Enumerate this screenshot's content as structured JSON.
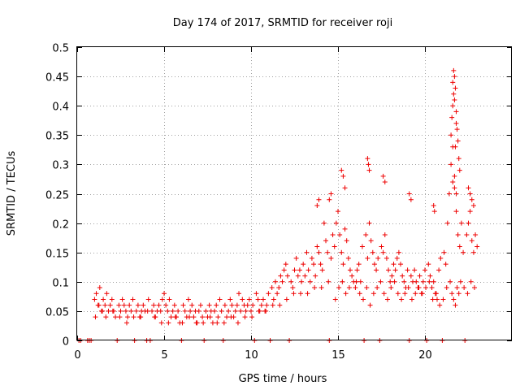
{
  "chart_data": {
    "type": "scatter",
    "title": "Day 174 of 2017, SRMTID for receiver roji",
    "xlabel": "GPS time / hours",
    "ylabel": "SRMTID / TECUs",
    "xlim": [
      0,
      25
    ],
    "ylim": [
      0,
      0.5
    ],
    "xticks": [
      0,
      5,
      10,
      15,
      20
    ],
    "xtick_labels": [
      "0",
      "5",
      "10",
      "15",
      "20"
    ],
    "yticks": [
      0,
      0.05,
      0.1,
      0.15,
      0.2,
      0.25,
      0.3,
      0.35,
      0.4,
      0.45,
      0.5
    ],
    "ytick_labels": [
      "0",
      "0.05",
      "0.1",
      "0.15",
      "0.2",
      "0.25",
      "0.3",
      "0.35",
      "0.4",
      "0.45",
      "0.5"
    ],
    "grid": true,
    "marker": "+",
    "series_color": "#ee0000",
    "series": [
      {
        "name": "SRMTID",
        "x": [
          0.1,
          0.2,
          0.6,
          0.7,
          0.8,
          2.3,
          3.3,
          4.0,
          4.2,
          6.0,
          7.3,
          8.4,
          10.2,
          11.1,
          12.2,
          14.5,
          16.5,
          17.4,
          19.1,
          20.1,
          21.0,
          22.3,
          1.0,
          1.1,
          1.2,
          1.3,
          1.4,
          1.5,
          1.6,
          1.7,
          1.8,
          1.9,
          2.0,
          2.1,
          2.2,
          2.4,
          2.5,
          2.6,
          2.7,
          2.8,
          2.9,
          3.0,
          3.1,
          3.2,
          3.4,
          3.5,
          3.6,
          3.7,
          3.8,
          3.9,
          4.1,
          4.3,
          4.4,
          4.5,
          4.6,
          4.7,
          4.8,
          4.9,
          5.0,
          5.1,
          5.2,
          5.3,
          5.4,
          5.5,
          5.6,
          5.7,
          5.8,
          5.9,
          6.1,
          6.2,
          6.3,
          6.4,
          6.5,
          6.6,
          6.7,
          6.8,
          6.9,
          7.0,
          7.1,
          7.2,
          7.4,
          7.5,
          7.6,
          7.7,
          7.8,
          7.9,
          8.0,
          8.1,
          8.2,
          8.3,
          8.5,
          8.6,
          8.7,
          8.8,
          8.9,
          9.0,
          9.1,
          9.2,
          9.3,
          9.4,
          9.5,
          9.6,
          9.7,
          9.8,
          9.9,
          10.0,
          10.1,
          10.3,
          10.4,
          10.5,
          10.6,
          10.7,
          10.8,
          10.9,
          11.0,
          11.2,
          11.3,
          11.4,
          11.5,
          11.6,
          11.7,
          11.8,
          11.9,
          12.0,
          12.1,
          12.3,
          12.4,
          12.5,
          12.6,
          12.7,
          12.8,
          12.9,
          13.0,
          13.1,
          13.2,
          13.3,
          13.4,
          13.5,
          13.6,
          13.7,
          13.8,
          13.9,
          14.0,
          14.1,
          14.2,
          14.3,
          14.4,
          14.6,
          14.7,
          14.8,
          14.9,
          15.0,
          15.1,
          15.2,
          15.3,
          15.4,
          15.5,
          15.6,
          15.7,
          15.8,
          15.9,
          16.0,
          16.1,
          16.2,
          16.3,
          16.4,
          16.6,
          16.7,
          16.8,
          16.9,
          17.0,
          17.1,
          17.2,
          17.3,
          17.5,
          17.6,
          17.7,
          17.8,
          17.9,
          18.0,
          18.1,
          18.2,
          18.3,
          18.4,
          18.5,
          18.6,
          18.7,
          18.8,
          18.9,
          19.0,
          19.2,
          19.3,
          19.4,
          19.5,
          19.6,
          19.7,
          19.8,
          19.9,
          20.0,
          20.2,
          20.3,
          20.4,
          20.5,
          20.6,
          20.7,
          20.8,
          20.9,
          21.1,
          21.2,
          21.3,
          21.4,
          21.5,
          21.6,
          21.7,
          21.8,
          21.9,
          22.0,
          22.1,
          22.2,
          22.4,
          22.5,
          22.6,
          22.7,
          22.8,
          22.9,
          23.0,
          1.05,
          1.25,
          1.45,
          1.65,
          2.05,
          2.45,
          2.85,
          3.25,
          3.65,
          4.05,
          4.45,
          4.85,
          5.25,
          5.65,
          6.05,
          6.45,
          6.85,
          7.25,
          7.65,
          8.05,
          8.45,
          8.85,
          9.25,
          9.65,
          10.05,
          10.45,
          10.85,
          11.25,
          11.65,
          12.05,
          12.45,
          12.85,
          13.25,
          13.65,
          14.05,
          14.45,
          14.85,
          15.05,
          15.25,
          15.45,
          15.65,
          16.05,
          16.25,
          16.45,
          16.65,
          16.85,
          17.05,
          17.25,
          17.45,
          17.65,
          17.85,
          18.05,
          18.25,
          18.45,
          18.65,
          18.85,
          19.05,
          19.25,
          19.45,
          19.65,
          19.85,
          20.05,
          20.25,
          20.45,
          20.65,
          20.85,
          21.05,
          21.25,
          21.45,
          21.55,
          21.65,
          21.75,
          21.85,
          21.95,
          22.05,
          22.25,
          22.45,
          22.65,
          22.85,
          21.5,
          21.55,
          21.6,
          21.65,
          21.7,
          21.75,
          21.8,
          21.85,
          21.9,
          21.95,
          22.0,
          21.6,
          21.7,
          21.8,
          21.65,
          21.75,
          15.2,
          15.3,
          15.4,
          16.7,
          16.75,
          16.8,
          17.6,
          17.7,
          14.6,
          14.5,
          13.8,
          13.9,
          19.1,
          19.2,
          20.5,
          20.55,
          22.5,
          22.6,
          22.7,
          22.8,
          21.6,
          21.7,
          21.8
        ],
        "y": [
          0,
          0,
          0,
          0,
          0,
          0,
          0,
          0,
          0,
          0,
          0,
          0,
          0,
          0,
          0,
          0,
          0,
          0,
          0,
          0,
          0,
          0,
          0.07,
          0.08,
          0.06,
          0.09,
          0.05,
          0.07,
          0.06,
          0.08,
          0.05,
          0.06,
          0.07,
          0.05,
          0.04,
          0.06,
          0.05,
          0.07,
          0.06,
          0.05,
          0.04,
          0.06,
          0.05,
          0.07,
          0.05,
          0.06,
          0.04,
          0.05,
          0.06,
          0.05,
          0.07,
          0.05,
          0.06,
          0.04,
          0.05,
          0.06,
          0.05,
          0.07,
          0.08,
          0.06,
          0.05,
          0.07,
          0.04,
          0.05,
          0.06,
          0.04,
          0.05,
          0.03,
          0.06,
          0.05,
          0.04,
          0.07,
          0.05,
          0.06,
          0.04,
          0.05,
          0.03,
          0.05,
          0.06,
          0.04,
          0.05,
          0.04,
          0.06,
          0.05,
          0.03,
          0.05,
          0.06,
          0.04,
          0.07,
          0.05,
          0.06,
          0.04,
          0.05,
          0.07,
          0.06,
          0.04,
          0.05,
          0.06,
          0.08,
          0.05,
          0.07,
          0.06,
          0.05,
          0.06,
          0.07,
          0.05,
          0.06,
          0.08,
          0.07,
          0.05,
          0.06,
          0.07,
          0.05,
          0.06,
          0.08,
          0.09,
          0.07,
          0.1,
          0.08,
          0.09,
          0.11,
          0.1,
          0.12,
          0.13,
          0.11,
          0.1,
          0.09,
          0.12,
          0.14,
          0.11,
          0.12,
          0.1,
          0.13,
          0.11,
          0.15,
          0.12,
          0.1,
          0.14,
          0.13,
          0.11,
          0.16,
          0.15,
          0.13,
          0.12,
          0.2,
          0.17,
          0.15,
          0.14,
          0.18,
          0.16,
          0.2,
          0.22,
          0.18,
          0.15,
          0.13,
          0.19,
          0.17,
          0.14,
          0.12,
          0.11,
          0.1,
          0.09,
          0.12,
          0.13,
          0.1,
          0.16,
          0.18,
          0.14,
          0.2,
          0.17,
          0.15,
          0.13,
          0.12,
          0.14,
          0.16,
          0.15,
          0.18,
          0.14,
          0.12,
          0.1,
          0.11,
          0.13,
          0.12,
          0.14,
          0.15,
          0.13,
          0.11,
          0.1,
          0.09,
          0.12,
          0.11,
          0.1,
          0.12,
          0.1,
          0.09,
          0.11,
          0.08,
          0.1,
          0.12,
          0.13,
          0.11,
          0.09,
          0.1,
          0.08,
          0.07,
          0.12,
          0.14,
          0.15,
          0.13,
          0.2,
          0.25,
          0.3,
          0.33,
          0.28,
          0.22,
          0.18,
          0.16,
          0.2,
          0.15,
          0.18,
          0.2,
          0.22,
          0.17,
          0.15,
          0.18,
          0.16,
          0.04,
          0.06,
          0.05,
          0.04,
          0.05,
          0.04,
          0.03,
          0.04,
          0.04,
          0.05,
          0.04,
          0.03,
          0.03,
          0.04,
          0.03,
          0.04,
          0.03,
          0.03,
          0.04,
          0.03,
          0.03,
          0.04,
          0.03,
          0.04,
          0.04,
          0.05,
          0.05,
          0.06,
          0.06,
          0.07,
          0.08,
          0.08,
          0.08,
          0.09,
          0.09,
          0.1,
          0.07,
          0.09,
          0.1,
          0.08,
          0.09,
          0.1,
          0.08,
          0.07,
          0.09,
          0.06,
          0.08,
          0.09,
          0.1,
          0.08,
          0.07,
          0.09,
          0.1,
          0.08,
          0.07,
          0.08,
          0.09,
          0.07,
          0.08,
          0.09,
          0.08,
          0.09,
          0.1,
          0.07,
          0.08,
          0.06,
          0.07,
          0.09,
          0.1,
          0.08,
          0.07,
          0.06,
          0.09,
          0.08,
          0.1,
          0.09,
          0.08,
          0.1,
          0.09,
          0.35,
          0.38,
          0.4,
          0.42,
          0.45,
          0.43,
          0.39,
          0.36,
          0.34,
          0.31,
          0.29,
          0.44,
          0.41,
          0.37,
          0.46,
          0.33,
          0.29,
          0.28,
          0.26,
          0.31,
          0.3,
          0.29,
          0.28,
          0.27,
          0.25,
          0.24,
          0.23,
          0.24,
          0.25,
          0.24,
          0.23,
          0.22,
          0.26,
          0.25,
          0.24,
          0.23,
          0.27,
          0.26,
          0.25
        ]
      }
    ]
  }
}
